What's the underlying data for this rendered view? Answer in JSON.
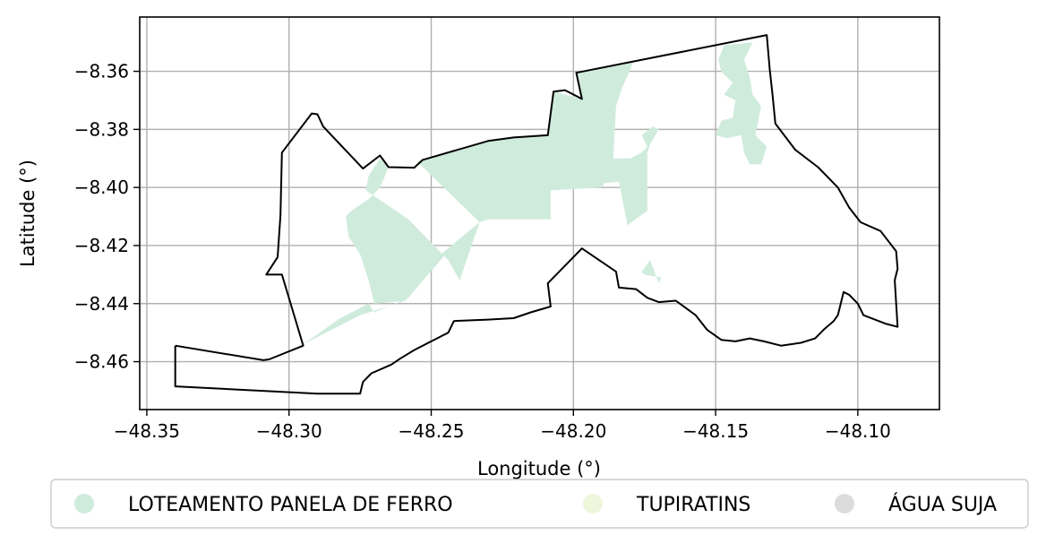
{
  "chart_data": {
    "type": "map",
    "title": "",
    "xlabel": "Longitude (°)",
    "ylabel": "Latitude (°)",
    "xlim": [
      -48.3525,
      -48.0713
    ],
    "ylim": [
      -8.4765,
      -8.3413
    ],
    "x_ticks": [
      {
        "value": -48.35,
        "label": "−48.35"
      },
      {
        "value": -48.3,
        "label": "−48.30"
      },
      {
        "value": -48.25,
        "label": "−48.25"
      },
      {
        "value": -48.2,
        "label": "−48.20"
      },
      {
        "value": -48.15,
        "label": "−48.15"
      },
      {
        "value": -48.1,
        "label": "−48.10"
      }
    ],
    "y_ticks": [
      {
        "value": -8.36,
        "label": "−8.36"
      },
      {
        "value": -8.38,
        "label": "−8.38"
      },
      {
        "value": -8.4,
        "label": "−8.40"
      },
      {
        "value": -8.42,
        "label": "−8.42"
      },
      {
        "value": -8.44,
        "label": "−8.44"
      },
      {
        "value": -8.46,
        "label": "−8.46"
      }
    ],
    "grid": true,
    "legend_position": "bottom",
    "legend": [
      {
        "name": "LOTEAMENTO PANELA DE FERRO",
        "color": "#cfebdc"
      },
      {
        "name": "TUPIRATINS",
        "color": "#eef7dc"
      },
      {
        "name": "ÁGUA SUJA",
        "color": "#dcdcdc"
      }
    ],
    "boundary": [
      [
        -48.34,
        -8.4545
      ],
      [
        -48.309,
        -8.4595
      ],
      [
        -48.307,
        -8.4592
      ],
      [
        -48.295,
        -8.4545
      ],
      [
        -48.3025,
        -8.43
      ],
      [
        -48.308,
        -8.43
      ],
      [
        -48.304,
        -8.424
      ],
      [
        -48.303,
        -8.4095
      ],
      [
        -48.3025,
        -8.388
      ],
      [
        -48.292,
        -8.3745
      ],
      [
        -48.29,
        -8.3748
      ],
      [
        -48.288,
        -8.379
      ],
      [
        -48.274,
        -8.3935
      ],
      [
        -48.268,
        -8.389
      ],
      [
        -48.265,
        -8.393
      ],
      [
        -48.256,
        -8.3932
      ],
      [
        -48.253,
        -8.3905
      ],
      [
        -48.23,
        -8.384
      ],
      [
        -48.221,
        -8.3828
      ],
      [
        -48.209,
        -8.382
      ],
      [
        -48.207,
        -8.367
      ],
      [
        -48.203,
        -8.3665
      ],
      [
        -48.197,
        -8.3695
      ],
      [
        -48.199,
        -8.3605
      ],
      [
        -48.132,
        -8.3475
      ],
      [
        -48.131,
        -8.359
      ],
      [
        -48.13,
        -8.368
      ],
      [
        -48.129,
        -8.378
      ],
      [
        -48.122,
        -8.387
      ],
      [
        -48.114,
        -8.393
      ],
      [
        -48.107,
        -8.4
      ],
      [
        -48.103,
        -8.407
      ],
      [
        -48.099,
        -8.412
      ],
      [
        -48.092,
        -8.415
      ],
      [
        -48.0865,
        -8.422
      ],
      [
        -48.086,
        -8.428
      ],
      [
        -48.087,
        -8.432
      ],
      [
        -48.086,
        -8.448
      ],
      [
        -48.09,
        -8.447
      ],
      [
        -48.098,
        -8.444
      ],
      [
        -48.1,
        -8.44
      ],
      [
        -48.103,
        -8.437
      ],
      [
        -48.105,
        -8.436
      ],
      [
        -48.106,
        -8.44
      ],
      [
        -48.107,
        -8.444
      ],
      [
        -48.1085,
        -8.446
      ],
      [
        -48.112,
        -8.449
      ],
      [
        -48.115,
        -8.452
      ],
      [
        -48.12,
        -8.4535
      ],
      [
        -48.127,
        -8.4545
      ],
      [
        -48.133,
        -8.453
      ],
      [
        -48.138,
        -8.452
      ],
      [
        -48.143,
        -8.453
      ],
      [
        -48.148,
        -8.4525
      ],
      [
        -48.153,
        -8.449
      ],
      [
        -48.157,
        -8.444
      ],
      [
        -48.164,
        -8.439
      ],
      [
        -48.17,
        -8.4395
      ],
      [
        -48.174,
        -8.438
      ],
      [
        -48.178,
        -8.435
      ],
      [
        -48.184,
        -8.4345
      ],
      [
        -48.185,
        -8.429
      ],
      [
        -48.197,
        -8.421
      ],
      [
        -48.209,
        -8.433
      ],
      [
        -48.208,
        -8.441
      ],
      [
        -48.215,
        -8.443
      ],
      [
        -48.221,
        -8.445
      ],
      [
        -48.23,
        -8.4455
      ],
      [
        -48.242,
        -8.446
      ],
      [
        -48.244,
        -8.45
      ],
      [
        -48.256,
        -8.456
      ],
      [
        -48.261,
        -8.459
      ],
      [
        -48.264,
        -8.461
      ],
      [
        -48.271,
        -8.464
      ],
      [
        -48.274,
        -8.467
      ],
      [
        -48.275,
        -8.471
      ],
      [
        -48.29,
        -8.471
      ],
      [
        -48.34,
        -8.4685
      ],
      [
        -48.34,
        -8.4545
      ]
    ],
    "series": [
      {
        "name": "LOTEAMENTO PANELA DE FERRO",
        "color": "#cfebdc",
        "polygons": [
          [
            [
              -48.207,
              -8.367
            ],
            [
              -48.197,
              -8.3695
            ],
            [
              -48.199,
              -8.3605
            ],
            [
              -48.179,
              -8.357
            ],
            [
              -48.183,
              -8.366
            ],
            [
              -48.185,
              -8.372
            ],
            [
              -48.186,
              -8.39
            ],
            [
              -48.18,
              -8.39
            ],
            [
              -48.176,
              -8.388
            ],
            [
              -48.174,
              -8.386
            ],
            [
              -48.176,
              -8.382
            ],
            [
              -48.172,
              -8.379
            ],
            [
              -48.17,
              -8.38
            ],
            [
              -48.173,
              -8.385
            ],
            [
              -48.174,
              -8.388
            ],
            [
              -48.174,
              -8.408
            ],
            [
              -48.181,
              -8.413
            ],
            [
              -48.184,
              -8.398
            ],
            [
              -48.189,
              -8.3985
            ],
            [
              -48.19,
              -8.4
            ],
            [
              -48.208,
              -8.401
            ],
            [
              -48.208,
              -8.411
            ],
            [
              -48.23,
              -8.411
            ],
            [
              -48.233,
              -8.412
            ],
            [
              -48.255,
              -8.391
            ],
            [
              -48.253,
              -8.3905
            ],
            [
              -48.23,
              -8.384
            ],
            [
              -48.221,
              -8.3828
            ],
            [
              -48.209,
              -8.382
            ]
          ],
          [
            [
              -48.147,
              -8.351
            ],
            [
              -48.137,
              -8.35
            ],
            [
              -48.14,
              -8.356
            ],
            [
              -48.138,
              -8.362
            ],
            [
              -48.137,
              -8.368
            ],
            [
              -48.134,
              -8.372
            ],
            [
              -48.136,
              -8.382
            ],
            [
              -48.132,
              -8.386
            ],
            [
              -48.134,
              -8.392
            ],
            [
              -48.138,
              -8.392
            ],
            [
              -48.14,
              -8.388
            ],
            [
              -48.141,
              -8.382
            ],
            [
              -48.146,
              -8.383
            ],
            [
              -48.15,
              -8.382
            ],
            [
              -48.148,
              -8.377
            ],
            [
              -48.144,
              -8.376
            ],
            [
              -48.143,
              -8.37
            ],
            [
              -48.147,
              -8.368
            ],
            [
              -48.144,
              -8.364
            ],
            [
              -48.148,
              -8.36
            ],
            [
              -48.149,
              -8.356
            ]
          ],
          [
            [
              -48.265,
              -8.393
            ],
            [
              -48.268,
              -8.39
            ],
            [
              -48.272,
              -8.396
            ],
            [
              -48.273,
              -8.401
            ],
            [
              -48.258,
              -8.411
            ],
            [
              -48.244,
              -8.425
            ],
            [
              -48.24,
              -8.432
            ],
            [
              -48.233,
              -8.412
            ],
            [
              -48.249,
              -8.425
            ],
            [
              -48.259,
              -8.439
            ],
            [
              -48.27,
              -8.44
            ],
            [
              -48.272,
              -8.432
            ],
            [
              -48.275,
              -8.423
            ],
            [
              -48.279,
              -8.417
            ],
            [
              -48.28,
              -8.41
            ],
            [
              -48.278,
              -8.408
            ],
            [
              -48.272,
              -8.404
            ],
            [
              -48.268,
              -8.4
            ]
          ],
          [
            [
              -48.233,
              -8.412
            ],
            [
              -48.244,
              -8.422
            ],
            [
              -48.252,
              -8.431
            ],
            [
              -48.258,
              -8.438
            ],
            [
              -48.27,
              -8.443
            ],
            [
              -48.272,
              -8.44
            ],
            [
              -48.282,
              -8.445
            ],
            [
              -48.295,
              -8.454
            ],
            [
              -48.275,
              -8.444
            ],
            [
              -48.259,
              -8.439
            ],
            [
              -48.249,
              -8.425
            ]
          ],
          [
            [
              -48.173,
              -8.425
            ],
            [
              -48.17,
              -8.433
            ],
            [
              -48.169,
              -8.431
            ],
            [
              -48.175,
              -8.43
            ],
            [
              -48.176,
              -8.429
            ]
          ]
        ]
      },
      {
        "name": "TUPIRATINS",
        "color": "#eef7dc",
        "polygons": []
      },
      {
        "name": "ÁGUA SUJA",
        "color": "#dcdcdc",
        "polygons": []
      }
    ]
  }
}
